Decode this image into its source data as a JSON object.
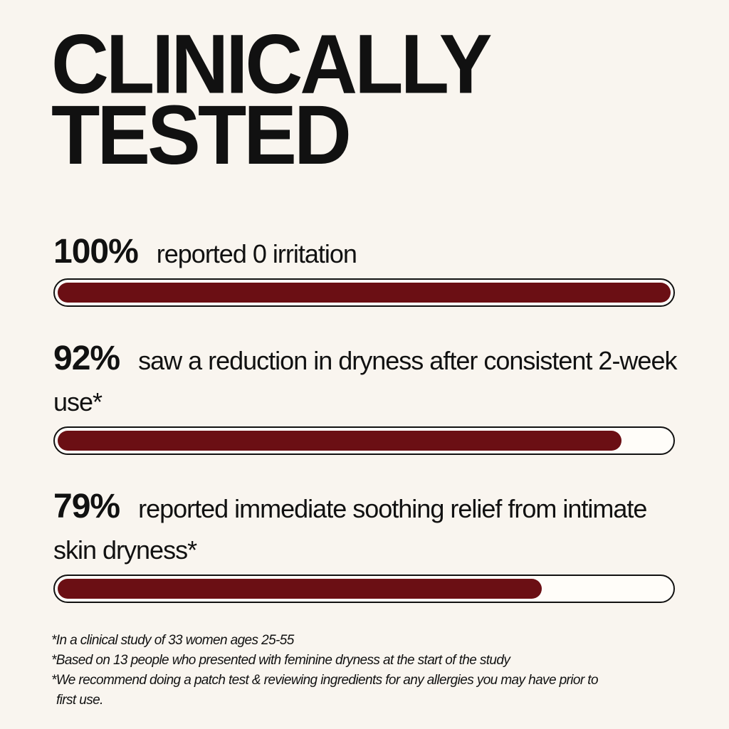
{
  "chart_data": {
    "type": "bar",
    "orientation": "horizontal",
    "title": "CLINICALLY TESTED",
    "categories": [
      "reported 0 irritation",
      "saw a reduction in dryness after consistent 2-week use*",
      "reported immediate soothing relief from intimate skin dryness*"
    ],
    "values": [
      100,
      92,
      79
    ],
    "value_labels": [
      "100%",
      "92%",
      "79%"
    ],
    "xlim": [
      0,
      100
    ],
    "color": "#6b0f14",
    "notes": [
      "*In a clinical study of 33 women ages 25-55",
      "*Based on 13 people who presented with feminine dryness at the start of the study",
      "*We recommend doing a patch test & reviewing ingredients for any allergies you may have prior to first use."
    ]
  }
}
